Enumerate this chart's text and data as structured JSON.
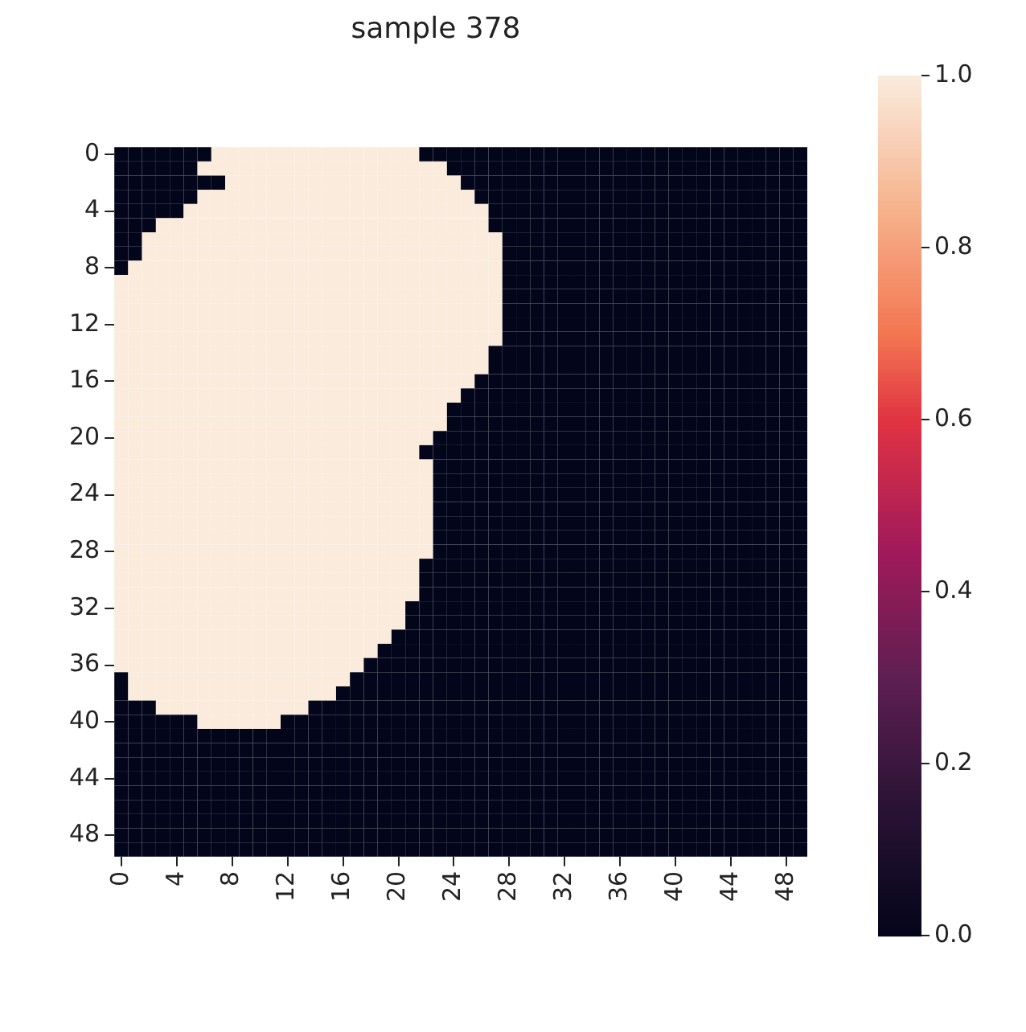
{
  "chart_data": {
    "type": "heatmap",
    "title": "sample 378",
    "categories": [
      "0",
      null,
      null,
      null,
      "4",
      null,
      null,
      null,
      "8",
      null,
      null,
      null,
      "12",
      null,
      null,
      null,
      "16",
      null,
      null,
      null,
      "20",
      null,
      null,
      null,
      "24",
      null,
      null,
      null,
      "28",
      null,
      null,
      null,
      "32",
      null,
      null,
      null,
      "36",
      null,
      null,
      null,
      "40",
      null,
      null,
      null,
      "44",
      null,
      null,
      null,
      "48",
      null
    ],
    "y_categories": [
      "0",
      null,
      null,
      null,
      "4",
      null,
      null,
      null,
      "8",
      null,
      null,
      null,
      "12",
      null,
      null,
      null,
      "16",
      null,
      null,
      null,
      "20",
      null,
      null,
      null,
      "24",
      null,
      null,
      null,
      "28",
      null,
      null,
      null,
      "32",
      null,
      null,
      null,
      "36",
      null,
      null,
      null,
      "40",
      null,
      null,
      null,
      "44",
      null,
      null,
      null,
      "48",
      null
    ],
    "clim": [
      0,
      1
    ],
    "cticks": [
      {
        "value": 0,
        "label": "0.0"
      },
      0.2,
      0.4,
      0.6,
      0.8,
      {
        "value": 1,
        "label": "1.0"
      }
    ],
    "cells": [
      [
        0,
        0,
        0,
        0,
        0,
        0,
        0,
        1,
        1,
        1,
        1,
        1,
        1,
        1,
        1,
        1,
        1,
        1,
        1,
        1,
        1,
        1,
        0,
        0,
        0,
        0,
        0,
        0,
        0,
        0,
        0,
        0,
        0,
        0,
        0,
        0,
        0,
        0,
        0,
        0,
        0,
        0,
        0,
        0,
        0,
        0,
        0,
        0,
        0,
        0
      ],
      [
        0,
        0,
        0,
        0,
        0,
        0,
        1,
        1,
        1,
        1,
        1,
        1,
        1,
        1,
        1,
        1,
        1,
        1,
        1,
        1,
        1,
        1,
        1,
        1,
        0,
        0,
        0,
        0,
        0,
        0,
        0,
        0,
        0,
        0,
        0,
        0,
        0,
        0,
        0,
        0,
        0,
        0,
        0,
        0,
        0,
        0,
        0,
        0,
        0,
        0
      ],
      [
        0,
        0,
        0,
        0,
        0,
        0,
        0,
        0,
        1,
        1,
        1,
        1,
        1,
        1,
        1,
        1,
        1,
        1,
        1,
        1,
        1,
        1,
        1,
        1,
        1,
        0,
        0,
        0,
        0,
        0,
        0,
        0,
        0,
        0,
        0,
        0,
        0,
        0,
        0,
        0,
        0,
        0,
        0,
        0,
        0,
        0,
        0,
        0,
        0,
        0
      ],
      [
        0,
        0,
        0,
        0,
        0,
        0,
        1,
        1,
        1,
        1,
        1,
        1,
        1,
        1,
        1,
        1,
        1,
        1,
        1,
        1,
        1,
        1,
        1,
        1,
        1,
        1,
        0,
        0,
        0,
        0,
        0,
        0,
        0,
        0,
        0,
        0,
        0,
        0,
        0,
        0,
        0,
        0,
        0,
        0,
        0,
        0,
        0,
        0,
        0,
        0
      ],
      [
        0,
        0,
        0,
        0,
        0,
        1,
        1,
        1,
        1,
        1,
        1,
        1,
        1,
        1,
        1,
        1,
        1,
        1,
        1,
        1,
        1,
        1,
        1,
        1,
        1,
        1,
        1,
        0,
        0,
        0,
        0,
        0,
        0,
        0,
        0,
        0,
        0,
        0,
        0,
        0,
        0,
        0,
        0,
        0,
        0,
        0,
        0,
        0,
        0,
        0
      ],
      [
        0,
        0,
        0,
        1,
        1,
        1,
        1,
        1,
        1,
        1,
        1,
        1,
        1,
        1,
        1,
        1,
        1,
        1,
        1,
        1,
        1,
        1,
        1,
        1,
        1,
        1,
        1,
        0,
        0,
        0,
        0,
        0,
        0,
        0,
        0,
        0,
        0,
        0,
        0,
        0,
        0,
        0,
        0,
        0,
        0,
        0,
        0,
        0,
        0,
        0
      ],
      [
        0,
        0,
        1,
        1,
        1,
        1,
        1,
        1,
        1,
        1,
        1,
        1,
        1,
        1,
        1,
        1,
        1,
        1,
        1,
        1,
        1,
        1,
        1,
        1,
        1,
        1,
        1,
        1,
        0,
        0,
        0,
        0,
        0,
        0,
        0,
        0,
        0,
        0,
        0,
        0,
        0,
        0,
        0,
        0,
        0,
        0,
        0,
        0,
        0,
        0
      ],
      [
        0,
        0,
        1,
        1,
        1,
        1,
        1,
        1,
        1,
        1,
        1,
        1,
        1,
        1,
        1,
        1,
        1,
        1,
        1,
        1,
        1,
        1,
        1,
        1,
        1,
        1,
        1,
        1,
        0,
        0,
        0,
        0,
        0,
        0,
        0,
        0,
        0,
        0,
        0,
        0,
        0,
        0,
        0,
        0,
        0,
        0,
        0,
        0,
        0,
        0
      ],
      [
        0,
        1,
        1,
        1,
        1,
        1,
        1,
        1,
        1,
        1,
        1,
        1,
        1,
        1,
        1,
        1,
        1,
        1,
        1,
        1,
        1,
        1,
        1,
        1,
        1,
        1,
        1,
        1,
        0,
        0,
        0,
        0,
        0,
        0,
        0,
        0,
        0,
        0,
        0,
        0,
        0,
        0,
        0,
        0,
        0,
        0,
        0,
        0,
        0,
        0
      ],
      [
        1,
        1,
        1,
        1,
        1,
        1,
        1,
        1,
        1,
        1,
        1,
        1,
        1,
        1,
        1,
        1,
        1,
        1,
        1,
        1,
        1,
        1,
        1,
        1,
        1,
        1,
        1,
        1,
        0,
        0,
        0,
        0,
        0,
        0,
        0,
        0,
        0,
        0,
        0,
        0,
        0,
        0,
        0,
        0,
        0,
        0,
        0,
        0,
        0,
        0
      ],
      [
        1,
        1,
        1,
        1,
        1,
        1,
        1,
        1,
        1,
        1,
        1,
        1,
        1,
        1,
        1,
        1,
        1,
        1,
        1,
        1,
        1,
        1,
        1,
        1,
        1,
        1,
        1,
        1,
        0,
        0,
        0,
        0,
        0,
        0,
        0,
        0,
        0,
        0,
        0,
        0,
        0,
        0,
        0,
        0,
        0,
        0,
        0,
        0,
        0,
        0
      ],
      [
        1,
        1,
        1,
        1,
        1,
        1,
        1,
        1,
        1,
        1,
        1,
        1,
        1,
        1,
        1,
        1,
        1,
        1,
        1,
        1,
        1,
        1,
        1,
        1,
        1,
        1,
        1,
        1,
        0,
        0,
        0,
        0,
        0,
        0,
        0,
        0,
        0,
        0,
        0,
        0,
        0,
        0,
        0,
        0,
        0,
        0,
        0,
        0,
        0,
        0
      ],
      [
        1,
        1,
        1,
        1,
        1,
        1,
        1,
        1,
        1,
        1,
        1,
        1,
        1,
        1,
        1,
        1,
        1,
        1,
        1,
        1,
        1,
        1,
        1,
        1,
        1,
        1,
        1,
        1,
        0,
        0,
        0,
        0,
        0,
        0,
        0,
        0,
        0,
        0,
        0,
        0,
        0,
        0,
        0,
        0,
        0,
        0,
        0,
        0,
        0,
        0
      ],
      [
        1,
        1,
        1,
        1,
        1,
        1,
        1,
        1,
        1,
        1,
        1,
        1,
        1,
        1,
        1,
        1,
        1,
        1,
        1,
        1,
        1,
        1,
        1,
        1,
        1,
        1,
        1,
        1,
        0,
        0,
        0,
        0,
        0,
        0,
        0,
        0,
        0,
        0,
        0,
        0,
        0,
        0,
        0,
        0,
        0,
        0,
        0,
        0,
        0,
        0
      ],
      [
        1,
        1,
        1,
        1,
        1,
        1,
        1,
        1,
        1,
        1,
        1,
        1,
        1,
        1,
        1,
        1,
        1,
        1,
        1,
        1,
        1,
        1,
        1,
        1,
        1,
        1,
        1,
        0,
        0,
        0,
        0,
        0,
        0,
        0,
        0,
        0,
        0,
        0,
        0,
        0,
        0,
        0,
        0,
        0,
        0,
        0,
        0,
        0,
        0,
        0
      ],
      [
        1,
        1,
        1,
        1,
        1,
        1,
        1,
        1,
        1,
        1,
        1,
        1,
        1,
        1,
        1,
        1,
        1,
        1,
        1,
        1,
        1,
        1,
        1,
        1,
        1,
        1,
        1,
        0,
        0,
        0,
        0,
        0,
        0,
        0,
        0,
        0,
        0,
        0,
        0,
        0,
        0,
        0,
        0,
        0,
        0,
        0,
        0,
        0,
        0,
        0
      ],
      [
        1,
        1,
        1,
        1,
        1,
        1,
        1,
        1,
        1,
        1,
        1,
        1,
        1,
        1,
        1,
        1,
        1,
        1,
        1,
        1,
        1,
        1,
        1,
        1,
        1,
        1,
        0,
        0,
        0,
        0,
        0,
        0,
        0,
        0,
        0,
        0,
        0,
        0,
        0,
        0,
        0,
        0,
        0,
        0,
        0,
        0,
        0,
        0,
        0,
        0
      ],
      [
        1,
        1,
        1,
        1,
        1,
        1,
        1,
        1,
        1,
        1,
        1,
        1,
        1,
        1,
        1,
        1,
        1,
        1,
        1,
        1,
        1,
        1,
        1,
        1,
        1,
        0,
        0,
        0,
        0,
        0,
        0,
        0,
        0,
        0,
        0,
        0,
        0,
        0,
        0,
        0,
        0,
        0,
        0,
        0,
        0,
        0,
        0,
        0,
        0,
        0
      ],
      [
        1,
        1,
        1,
        1,
        1,
        1,
        1,
        1,
        1,
        1,
        1,
        1,
        1,
        1,
        1,
        1,
        1,
        1,
        1,
        1,
        1,
        1,
        1,
        1,
        0,
        0,
        0,
        0,
        0,
        0,
        0,
        0,
        0,
        0,
        0,
        0,
        0,
        0,
        0,
        0,
        0,
        0,
        0,
        0,
        0,
        0,
        0,
        0,
        0,
        0
      ],
      [
        1,
        1,
        1,
        1,
        1,
        1,
        1,
        1,
        1,
        1,
        1,
        1,
        1,
        1,
        1,
        1,
        1,
        1,
        1,
        1,
        1,
        1,
        1,
        1,
        0,
        0,
        0,
        0,
        0,
        0,
        0,
        0,
        0,
        0,
        0,
        0,
        0,
        0,
        0,
        0,
        0,
        0,
        0,
        0,
        0,
        0,
        0,
        0,
        0,
        0
      ],
      [
        1,
        1,
        1,
        1,
        1,
        1,
        1,
        1,
        1,
        1,
        1,
        1,
        1,
        1,
        1,
        1,
        1,
        1,
        1,
        1,
        1,
        1,
        1,
        0,
        0,
        0,
        0,
        0,
        0,
        0,
        0,
        0,
        0,
        0,
        0,
        0,
        0,
        0,
        0,
        0,
        0,
        0,
        0,
        0,
        0,
        0,
        0,
        0,
        0,
        0
      ],
      [
        1,
        1,
        1,
        1,
        1,
        1,
        1,
        1,
        1,
        1,
        1,
        1,
        1,
        1,
        1,
        1,
        1,
        1,
        1,
        1,
        1,
        1,
        0,
        0,
        0,
        0,
        0,
        0,
        0,
        0,
        0,
        0,
        0,
        0,
        0,
        0,
        0,
        0,
        0,
        0,
        0,
        0,
        0,
        0,
        0,
        0,
        0,
        0,
        0,
        0
      ],
      [
        1,
        1,
        1,
        1,
        1,
        1,
        1,
        1,
        1,
        1,
        1,
        1,
        1,
        1,
        1,
        1,
        1,
        1,
        1,
        1,
        1,
        1,
        1,
        0,
        0,
        0,
        0,
        0,
        0,
        0,
        0,
        0,
        0,
        0,
        0,
        0,
        0,
        0,
        0,
        0,
        0,
        0,
        0,
        0,
        0,
        0,
        0,
        0,
        0,
        0
      ],
      [
        1,
        1,
        1,
        1,
        1,
        1,
        1,
        1,
        1,
        1,
        1,
        1,
        1,
        1,
        1,
        1,
        1,
        1,
        1,
        1,
        1,
        1,
        1,
        0,
        0,
        0,
        0,
        0,
        0,
        0,
        0,
        0,
        0,
        0,
        0,
        0,
        0,
        0,
        0,
        0,
        0,
        0,
        0,
        0,
        0,
        0,
        0,
        0,
        0,
        0
      ],
      [
        1,
        1,
        1,
        1,
        1,
        1,
        1,
        1,
        1,
        1,
        1,
        1,
        1,
        1,
        1,
        1,
        1,
        1,
        1,
        1,
        1,
        1,
        1,
        0,
        0,
        0,
        0,
        0,
        0,
        0,
        0,
        0,
        0,
        0,
        0,
        0,
        0,
        0,
        0,
        0,
        0,
        0,
        0,
        0,
        0,
        0,
        0,
        0,
        0,
        0
      ],
      [
        1,
        1,
        1,
        1,
        1,
        1,
        1,
        1,
        1,
        1,
        1,
        1,
        1,
        1,
        1,
        1,
        1,
        1,
        1,
        1,
        1,
        1,
        1,
        0,
        0,
        0,
        0,
        0,
        0,
        0,
        0,
        0,
        0,
        0,
        0,
        0,
        0,
        0,
        0,
        0,
        0,
        0,
        0,
        0,
        0,
        0,
        0,
        0,
        0,
        0
      ],
      [
        1,
        1,
        1,
        1,
        1,
        1,
        1,
        1,
        1,
        1,
        1,
        1,
        1,
        1,
        1,
        1,
        1,
        1,
        1,
        1,
        1,
        1,
        1,
        0,
        0,
        0,
        0,
        0,
        0,
        0,
        0,
        0,
        0,
        0,
        0,
        0,
        0,
        0,
        0,
        0,
        0,
        0,
        0,
        0,
        0,
        0,
        0,
        0,
        0,
        0
      ],
      [
        1,
        1,
        1,
        1,
        1,
        1,
        1,
        1,
        1,
        1,
        1,
        1,
        1,
        1,
        1,
        1,
        1,
        1,
        1,
        1,
        1,
        1,
        1,
        0,
        0,
        0,
        0,
        0,
        0,
        0,
        0,
        0,
        0,
        0,
        0,
        0,
        0,
        0,
        0,
        0,
        0,
        0,
        0,
        0,
        0,
        0,
        0,
        0,
        0,
        0
      ],
      [
        1,
        1,
        1,
        1,
        1,
        1,
        1,
        1,
        1,
        1,
        1,
        1,
        1,
        1,
        1,
        1,
        1,
        1,
        1,
        1,
        1,
        1,
        1,
        0,
        0,
        0,
        0,
        0,
        0,
        0,
        0,
        0,
        0,
        0,
        0,
        0,
        0,
        0,
        0,
        0,
        0,
        0,
        0,
        0,
        0,
        0,
        0,
        0,
        0,
        0
      ],
      [
        1,
        1,
        1,
        1,
        1,
        1,
        1,
        1,
        1,
        1,
        1,
        1,
        1,
        1,
        1,
        1,
        1,
        1,
        1,
        1,
        1,
        1,
        0,
        0,
        0,
        0,
        0,
        0,
        0,
        0,
        0,
        0,
        0,
        0,
        0,
        0,
        0,
        0,
        0,
        0,
        0,
        0,
        0,
        0,
        0,
        0,
        0,
        0,
        0,
        0
      ],
      [
        1,
        1,
        1,
        1,
        1,
        1,
        1,
        1,
        1,
        1,
        1,
        1,
        1,
        1,
        1,
        1,
        1,
        1,
        1,
        1,
        1,
        1,
        0,
        0,
        0,
        0,
        0,
        0,
        0,
        0,
        0,
        0,
        0,
        0,
        0,
        0,
        0,
        0,
        0,
        0,
        0,
        0,
        0,
        0,
        0,
        0,
        0,
        0,
        0,
        0
      ],
      [
        1,
        1,
        1,
        1,
        1,
        1,
        1,
        1,
        1,
        1,
        1,
        1,
        1,
        1,
        1,
        1,
        1,
        1,
        1,
        1,
        1,
        1,
        0,
        0,
        0,
        0,
        0,
        0,
        0,
        0,
        0,
        0,
        0,
        0,
        0,
        0,
        0,
        0,
        0,
        0,
        0,
        0,
        0,
        0,
        0,
        0,
        0,
        0,
        0,
        0
      ],
      [
        1,
        1,
        1,
        1,
        1,
        1,
        1,
        1,
        1,
        1,
        1,
        1,
        1,
        1,
        1,
        1,
        1,
        1,
        1,
        1,
        1,
        0,
        0,
        0,
        0,
        0,
        0,
        0,
        0,
        0,
        0,
        0,
        0,
        0,
        0,
        0,
        0,
        0,
        0,
        0,
        0,
        0,
        0,
        0,
        0,
        0,
        0,
        0,
        0,
        0
      ],
      [
        1,
        1,
        1,
        1,
        1,
        1,
        1,
        1,
        1,
        1,
        1,
        1,
        1,
        1,
        1,
        1,
        1,
        1,
        1,
        1,
        1,
        0,
        0,
        0,
        0,
        0,
        0,
        0,
        0,
        0,
        0,
        0,
        0,
        0,
        0,
        0,
        0,
        0,
        0,
        0,
        0,
        0,
        0,
        0,
        0,
        0,
        0,
        0,
        0,
        0
      ],
      [
        1,
        1,
        1,
        1,
        1,
        1,
        1,
        1,
        1,
        1,
        1,
        1,
        1,
        1,
        1,
        1,
        1,
        1,
        1,
        1,
        0,
        0,
        0,
        0,
        0,
        0,
        0,
        0,
        0,
        0,
        0,
        0,
        0,
        0,
        0,
        0,
        0,
        0,
        0,
        0,
        0,
        0,
        0,
        0,
        0,
        0,
        0,
        0,
        0,
        0
      ],
      [
        1,
        1,
        1,
        1,
        1,
        1,
        1,
        1,
        1,
        1,
        1,
        1,
        1,
        1,
        1,
        1,
        1,
        1,
        1,
        0,
        0,
        0,
        0,
        0,
        0,
        0,
        0,
        0,
        0,
        0,
        0,
        0,
        0,
        0,
        0,
        0,
        0,
        0,
        0,
        0,
        0,
        0,
        0,
        0,
        0,
        0,
        0,
        0,
        0,
        0
      ],
      [
        1,
        1,
        1,
        1,
        1,
        1,
        1,
        1,
        1,
        1,
        1,
        1,
        1,
        1,
        1,
        1,
        1,
        1,
        0,
        0,
        0,
        0,
        0,
        0,
        0,
        0,
        0,
        0,
        0,
        0,
        0,
        0,
        0,
        0,
        0,
        0,
        0,
        0,
        0,
        0,
        0,
        0,
        0,
        0,
        0,
        0,
        0,
        0,
        0,
        0
      ],
      [
        0,
        1,
        1,
        1,
        1,
        1,
        1,
        1,
        1,
        1,
        1,
        1,
        1,
        1,
        1,
        1,
        1,
        0,
        0,
        0,
        0,
        0,
        0,
        0,
        0,
        0,
        0,
        0,
        0,
        0,
        0,
        0,
        0,
        0,
        0,
        0,
        0,
        0,
        0,
        0,
        0,
        0,
        0,
        0,
        0,
        0,
        0,
        0,
        0,
        0
      ],
      [
        0,
        1,
        1,
        1,
        1,
        1,
        1,
        1,
        1,
        1,
        1,
        1,
        1,
        1,
        1,
        1,
        0,
        0,
        0,
        0,
        0,
        0,
        0,
        0,
        0,
        0,
        0,
        0,
        0,
        0,
        0,
        0,
        0,
        0,
        0,
        0,
        0,
        0,
        0,
        0,
        0,
        0,
        0,
        0,
        0,
        0,
        0,
        0,
        0,
        0
      ],
      [
        0,
        0,
        0,
        1,
        1,
        1,
        1,
        1,
        1,
        1,
        1,
        1,
        1,
        1,
        0,
        0,
        0,
        0,
        0,
        0,
        0,
        0,
        0,
        0,
        0,
        0,
        0,
        0,
        0,
        0,
        0,
        0,
        0,
        0,
        0,
        0,
        0,
        0,
        0,
        0,
        0,
        0,
        0,
        0,
        0,
        0,
        0,
        0,
        0,
        0
      ],
      [
        0,
        0,
        0,
        0,
        0,
        0,
        1,
        1,
        1,
        1,
        1,
        1,
        0,
        0,
        0,
        0,
        0,
        0,
        0,
        0,
        0,
        0,
        0,
        0,
        0,
        0,
        0,
        0,
        0,
        0,
        0,
        0,
        0,
        0,
        0,
        0,
        0,
        0,
        0,
        0,
        0,
        0,
        0,
        0,
        0,
        0,
        0,
        0,
        0,
        0
      ],
      [
        0,
        0,
        0,
        0,
        0,
        0,
        0,
        0,
        0,
        0,
        0,
        0,
        0,
        0,
        0,
        0,
        0,
        0,
        0,
        0,
        0,
        0,
        0,
        0,
        0,
        0,
        0,
        0,
        0,
        0,
        0,
        0,
        0,
        0,
        0,
        0,
        0,
        0,
        0,
        0,
        0,
        0,
        0,
        0,
        0,
        0,
        0,
        0,
        0,
        0
      ],
      [
        0,
        0,
        0,
        0,
        0,
        0,
        0,
        0,
        0,
        0,
        0,
        0,
        0,
        0,
        0,
        0,
        0,
        0,
        0,
        0,
        0,
        0,
        0,
        0,
        0,
        0,
        0,
        0,
        0,
        0,
        0,
        0,
        0,
        0,
        0,
        0,
        0,
        0,
        0,
        0,
        0,
        0,
        0,
        0,
        0,
        0,
        0,
        0,
        0,
        0
      ],
      [
        0,
        0,
        0,
        0,
        0,
        0,
        0,
        0,
        0,
        0,
        0,
        0,
        0,
        0,
        0,
        0,
        0,
        0,
        0,
        0,
        0,
        0,
        0,
        0,
        0,
        0,
        0,
        0,
        0,
        0,
        0,
        0,
        0,
        0,
        0,
        0,
        0,
        0,
        0,
        0,
        0,
        0,
        0,
        0,
        0,
        0,
        0,
        0,
        0,
        0
      ],
      [
        0,
        0,
        0,
        0,
        0,
        0,
        0,
        0,
        0,
        0,
        0,
        0,
        0,
        0,
        0,
        0,
        0,
        0,
        0,
        0,
        0,
        0,
        0,
        0,
        0,
        0,
        0,
        0,
        0,
        0,
        0,
        0,
        0,
        0,
        0,
        0,
        0,
        0,
        0,
        0,
        0,
        0,
        0,
        0,
        0,
        0,
        0,
        0,
        0,
        0
      ],
      [
        0,
        0,
        0,
        0,
        0,
        0,
        0,
        0,
        0,
        0,
        0,
        0,
        0,
        0,
        0,
        0,
        0,
        0,
        0,
        0,
        0,
        0,
        0,
        0,
        0,
        0,
        0,
        0,
        0,
        0,
        0,
        0,
        0,
        0,
        0,
        0,
        0,
        0,
        0,
        0,
        0,
        0,
        0,
        0,
        0,
        0,
        0,
        0,
        0,
        0
      ],
      [
        0,
        0,
        0,
        0,
        0,
        0,
        0,
        0,
        0,
        0,
        0,
        0,
        0,
        0,
        0,
        0,
        0,
        0,
        0,
        0,
        0,
        0,
        0,
        0,
        0,
        0,
        0,
        0,
        0,
        0,
        0,
        0,
        0,
        0,
        0,
        0,
        0,
        0,
        0,
        0,
        0,
        0,
        0,
        0,
        0,
        0,
        0,
        0,
        0,
        0
      ],
      [
        0,
        0,
        0,
        0,
        0,
        0,
        0,
        0,
        0,
        0,
        0,
        0,
        0,
        0,
        0,
        0,
        0,
        0,
        0,
        0,
        0,
        0,
        0,
        0,
        0,
        0,
        0,
        0,
        0,
        0,
        0,
        0,
        0,
        0,
        0,
        0,
        0,
        0,
        0,
        0,
        0,
        0,
        0,
        0,
        0,
        0,
        0,
        0,
        0,
        0
      ],
      [
        0,
        0,
        0,
        0,
        0,
        0,
        0,
        0,
        0,
        0,
        0,
        0,
        0,
        0,
        0,
        0,
        0,
        0,
        0,
        0,
        0,
        0,
        0,
        0,
        0,
        0,
        0,
        0,
        0,
        0,
        0,
        0,
        0,
        0,
        0,
        0,
        0,
        0,
        0,
        0,
        0,
        0,
        0,
        0,
        0,
        0,
        0,
        0,
        0,
        0
      ],
      [
        0,
        0,
        0,
        0,
        0,
        0,
        0,
        0,
        0,
        0,
        0,
        0,
        0,
        0,
        0,
        0,
        0,
        0,
        0,
        0,
        0,
        0,
        0,
        0,
        0,
        0,
        0,
        0,
        0,
        0,
        0,
        0,
        0,
        0,
        0,
        0,
        0,
        0,
        0,
        0,
        0,
        0,
        0,
        0,
        0,
        0,
        0,
        0,
        0,
        0
      ]
    ]
  }
}
